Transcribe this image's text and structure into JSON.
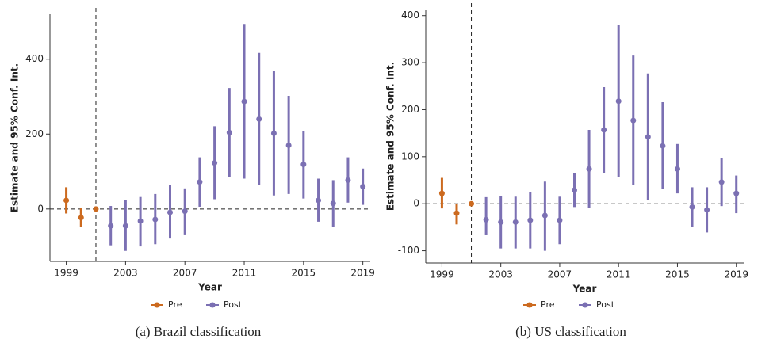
{
  "chart_data": [
    {
      "type": "errorbar",
      "caption": "(a) Brazil classification",
      "x_label": "Year",
      "y_label": "Estimate and 95% Conf. Int.",
      "xlim": [
        1997.9,
        2019.5
      ],
      "xticks": [
        1999,
        2003,
        2007,
        2011,
        2015,
        2019
      ],
      "ylim": [
        -140,
        520
      ],
      "yticks": [
        0,
        200,
        400
      ],
      "vline": 2001,
      "hline": 0,
      "legend": "bottom",
      "series": [
        {
          "name": "Pre",
          "color": "#cc6a1f",
          "x": [
            1999,
            2000,
            2001
          ],
          "values": [
            23,
            -23,
            0
          ],
          "lower": [
            -12,
            -48,
            0
          ],
          "upper": [
            58,
            2,
            0
          ]
        },
        {
          "name": "Post",
          "color": "#7b70b3",
          "x": [
            2002,
            2003,
            2004,
            2005,
            2006,
            2007,
            2008,
            2009,
            2010,
            2011,
            2012,
            2013,
            2014,
            2015,
            2016,
            2017,
            2018,
            2019
          ],
          "values": [
            -45,
            -45,
            -32,
            -28,
            -9,
            -6,
            72,
            123,
            204,
            287,
            240,
            202,
            170,
            119,
            23,
            15,
            77,
            60
          ],
          "lower": [
            -97,
            -112,
            -100,
            -94,
            -79,
            -70,
            6,
            26,
            85,
            81,
            64,
            36,
            40,
            28,
            -34,
            -47,
            17,
            11
          ],
          "upper": [
            8,
            25,
            32,
            40,
            64,
            55,
            138,
            221,
            323,
            494,
            417,
            368,
            302,
            208,
            81,
            77,
            138,
            108
          ]
        }
      ]
    },
    {
      "type": "errorbar",
      "caption": "(b) US classification",
      "x_label": "Year",
      "y_label": "Estimate and 95% Conf. Int.",
      "xlim": [
        1997.9,
        2019.5
      ],
      "xticks": [
        1999,
        2003,
        2007,
        2011,
        2015,
        2019
      ],
      "ylim": [
        -126,
        413
      ],
      "yticks": [
        -100,
        0,
        100,
        200,
        300,
        400
      ],
      "vline": 2001,
      "hline": 0,
      "legend": "bottom",
      "series": [
        {
          "name": "Pre",
          "color": "#cc6a1f",
          "x": [
            1999,
            2000,
            2001
          ],
          "values": [
            22,
            -20,
            0
          ],
          "lower": [
            -10,
            -44,
            0
          ],
          "upper": [
            55,
            0,
            0
          ]
        },
        {
          "name": "Post",
          "color": "#7b70b3",
          "x": [
            2002,
            2003,
            2004,
            2005,
            2006,
            2007,
            2008,
            2009,
            2010,
            2011,
            2012,
            2013,
            2014,
            2015,
            2016,
            2017,
            2018,
            2019
          ],
          "values": [
            -34,
            -39,
            -39,
            -35,
            -25,
            -35,
            29,
            74,
            157,
            218,
            177,
            142,
            123,
            74,
            -7,
            -13,
            46,
            22
          ],
          "lower": [
            -67,
            -95,
            -95,
            -95,
            -100,
            -86,
            -7,
            -8,
            66,
            57,
            39,
            8,
            32,
            22,
            -49,
            -61,
            -5,
            -20
          ],
          "upper": [
            14,
            17,
            15,
            25,
            47,
            15,
            66,
            157,
            248,
            381,
            315,
            277,
            216,
            127,
            35,
            35,
            98,
            60
          ]
        }
      ]
    }
  ]
}
